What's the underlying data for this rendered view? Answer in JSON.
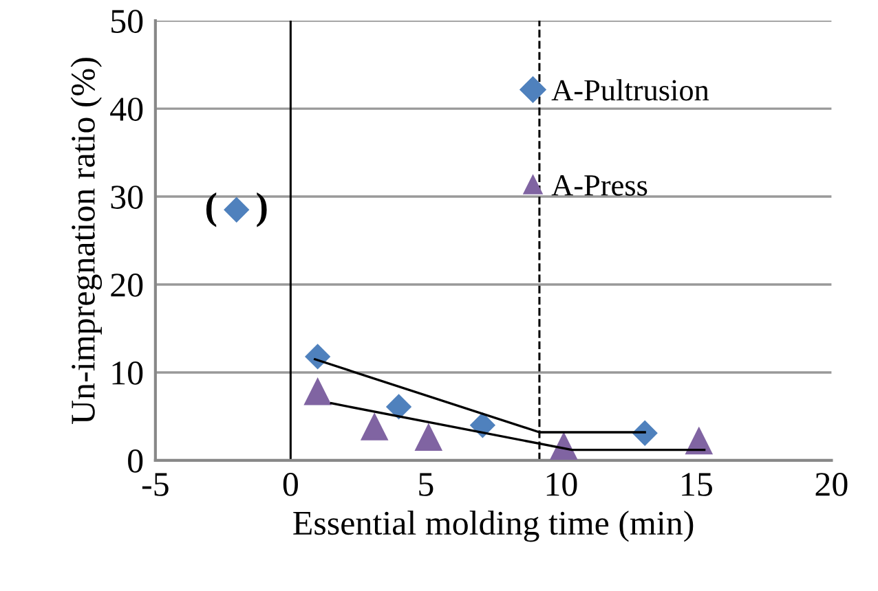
{
  "chart_data": {
    "type": "scatter",
    "xlabel": "Essential molding time (min)",
    "ylabel": "Un-impregnation ratio (%)",
    "xlim": [
      -5,
      20
    ],
    "xticks": [
      -5,
      0,
      5,
      10,
      15,
      20
    ],
    "ylim": [
      0,
      50
    ],
    "yticks": [
      0,
      10,
      20,
      30,
      40,
      50
    ],
    "grid": "y",
    "legend": "top right",
    "series": [
      {
        "name": "A-Pultrusion",
        "color": "#4f81bd",
        "marker": "diamond",
        "x": [
          -2,
          1,
          4,
          7.1,
          13.1
        ],
        "values": [
          28.5,
          11.8,
          6.1,
          4.0,
          3.1
        ]
      },
      {
        "name": "A-Press",
        "color": "#8064a2",
        "marker": "triangle",
        "x": [
          1,
          3.1,
          5.1,
          10.1,
          15.1
        ],
        "values": [
          7.8,
          3.8,
          2.6,
          1.6,
          2.2
        ]
      },
      {
        "type": "line",
        "color": "#000000",
        "marker": "none",
        "x": [
          0.9,
          9.2,
          13.1
        ],
        "values": [
          11.5,
          3.2,
          3.2
        ]
      },
      {
        "type": "line",
        "color": "#000000",
        "marker": "none",
        "x": [
          1.5,
          10.4,
          15.3
        ],
        "values": [
          6.5,
          1.2,
          1.2
        ]
      }
    ],
    "ref_lines": [
      {
        "axis": "x",
        "value": 0,
        "color": "#000000",
        "line_style": "solid"
      },
      {
        "axis": "x",
        "value": 9.2,
        "color": "#000000",
        "line_style": "dashed"
      }
    ],
    "annotations": [
      {
        "text": "(    )",
        "x": -2,
        "y": 28.5
      }
    ]
  }
}
